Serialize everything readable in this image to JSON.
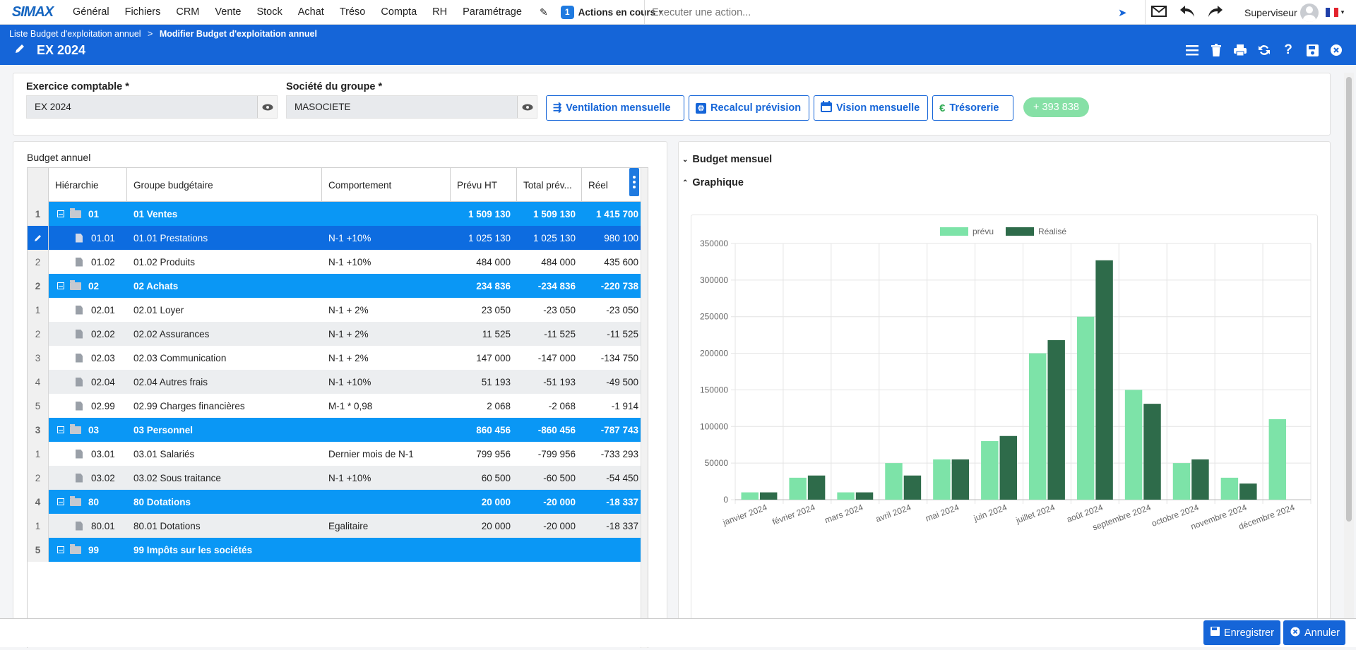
{
  "app": {
    "logo": "SIMAX"
  },
  "menu": [
    "Général",
    "Fichiers",
    "CRM",
    "Vente",
    "Stock",
    "Achat",
    "Tréso",
    "Compta",
    "RH",
    "Paramétrage"
  ],
  "actions": {
    "count": "1",
    "label": "Actions en cours"
  },
  "command": {
    "placeholder": "Executer une action..."
  },
  "user": {
    "name": "Superviseur"
  },
  "breadcrumb": {
    "parent": "Liste Budget d'exploitation annuel",
    "sep": ">",
    "current": "Modifier Budget d'exploitation annuel"
  },
  "page": {
    "title": "EX 2024"
  },
  "form": {
    "exercice_label": "Exercice comptable *",
    "exercice_value": "EX 2024",
    "societe_label": "Société du groupe *",
    "societe_value": "MASOCIETE",
    "buttons": [
      "Ventilation mensuelle",
      "Recalcul prévision",
      "Vision mensuelle",
      "Trésorerie"
    ],
    "balance": "+ 393 838"
  },
  "budget_annuel": {
    "title": "Budget annuel",
    "columns": [
      "Hiérarchie",
      "Groupe budgétaire",
      "Comportement",
      "Prévu HT",
      "Total prév...",
      "Réel"
    ],
    "rows": [
      {
        "rn": "1",
        "type": "grp",
        "code": "01",
        "groupe": "01 Ventes",
        "comp": "",
        "prevu": "1 509 130",
        "total": "1 509 130",
        "reel": "1 415 700"
      },
      {
        "rn": "",
        "type": "sel",
        "code": "01.01",
        "groupe": "01.01 Prestations",
        "comp": "N-1 +10%",
        "prevu": "1 025 130",
        "total": "1 025 130",
        "reel": "980 100"
      },
      {
        "rn": "2",
        "type": "white",
        "code": "01.02",
        "groupe": "01.02 Produits",
        "comp": "N-1 +10%",
        "prevu": "484 000",
        "total": "484 000",
        "reel": "435 600"
      },
      {
        "rn": "2",
        "type": "grp",
        "code": "02",
        "groupe": "02 Achats",
        "comp": "",
        "prevu": "234 836",
        "total": "-234 836",
        "reel": "-220 738"
      },
      {
        "rn": "1",
        "type": "white",
        "code": "02.01",
        "groupe": "02.01 Loyer",
        "comp": "N-1 + 2%",
        "prevu": "23 050",
        "total": "-23 050",
        "reel": "-23 050"
      },
      {
        "rn": "2",
        "type": "alt",
        "code": "02.02",
        "groupe": "02.02 Assurances",
        "comp": "N-1 + 2%",
        "prevu": "11 525",
        "total": "-11 525",
        "reel": "-11 525"
      },
      {
        "rn": "3",
        "type": "white",
        "code": "02.03",
        "groupe": "02.03 Communication",
        "comp": "N-1 + 2%",
        "prevu": "147 000",
        "total": "-147 000",
        "reel": "-134 750"
      },
      {
        "rn": "4",
        "type": "alt",
        "code": "02.04",
        "groupe": "02.04 Autres frais",
        "comp": "N-1 +10%",
        "prevu": "51 193",
        "total": "-51 193",
        "reel": "-49 500"
      },
      {
        "rn": "5",
        "type": "white",
        "code": "02.99",
        "groupe": "02.99 Charges financières",
        "comp": "M-1 * 0,98",
        "prevu": "2 068",
        "total": "-2 068",
        "reel": "-1 914"
      },
      {
        "rn": "3",
        "type": "grp",
        "code": "03",
        "groupe": "03 Personnel",
        "comp": "",
        "prevu": "860 456",
        "total": "-860 456",
        "reel": "-787 743"
      },
      {
        "rn": "1",
        "type": "white",
        "code": "03.01",
        "groupe": "03.01 Salariés",
        "comp": "Dernier mois de N-1",
        "prevu": "799 956",
        "total": "-799 956",
        "reel": "-733 293"
      },
      {
        "rn": "2",
        "type": "alt",
        "code": "03.02",
        "groupe": "03.02 Sous traitance",
        "comp": "N-1 +10%",
        "prevu": "60 500",
        "total": "-60 500",
        "reel": "-54 450"
      },
      {
        "rn": "4",
        "type": "grp",
        "code": "80",
        "groupe": "80 Dotations",
        "comp": "",
        "prevu": "20 000",
        "total": "-20 000",
        "reel": "-18 337"
      },
      {
        "rn": "1",
        "type": "alt",
        "code": "80.01",
        "groupe": "80.01 Dotations",
        "comp": "Egalitaire",
        "prevu": "20 000",
        "total": "-20 000",
        "reel": "-18 337"
      },
      {
        "rn": "5",
        "type": "grp",
        "code": "99",
        "groupe": "99 Impôts sur les sociétés",
        "comp": "",
        "prevu": "",
        "total": "",
        "reel": ""
      }
    ]
  },
  "sections": {
    "mensuel": "Budget mensuel",
    "graphique": "Graphique"
  },
  "footer": {
    "save": "Enregistrer",
    "cancel": "Annuler"
  },
  "colors": {
    "blue": "#1565d8",
    "prevu": "#7de3a8",
    "realise": "#2e6b4a"
  },
  "chart_data": {
    "type": "bar",
    "categories": [
      "janvier 2024",
      "février 2024",
      "mars 2024",
      "avril 2024",
      "mai 2024",
      "juin 2024",
      "juillet 2024",
      "août 2024",
      "septembre 2024",
      "octobre 2024",
      "novembre 2024",
      "décembre 2024"
    ],
    "series": [
      {
        "name": "prévu",
        "values": [
          10000,
          30000,
          10000,
          50000,
          55000,
          80000,
          200000,
          250000,
          150000,
          50000,
          30000,
          110000
        ]
      },
      {
        "name": "Réalisé",
        "values": [
          10000,
          33000,
          10000,
          33000,
          55000,
          87000,
          218000,
          327000,
          131000,
          55000,
          22000,
          0
        ]
      }
    ],
    "ylim": [
      0,
      350000
    ],
    "yticks": [
      "0",
      "50000",
      "100000",
      "150000",
      "200000",
      "250000",
      "300000",
      "350000"
    ],
    "legend": "top-center",
    "grid": true
  }
}
